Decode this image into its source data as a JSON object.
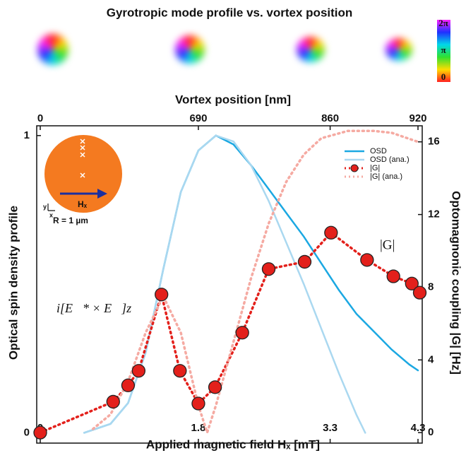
{
  "chart_data": {
    "type": "line",
    "title": "Gyrotropic mode profile vs. vortex position",
    "colorbar": {
      "ticks": [
        "2π",
        "π",
        "0"
      ]
    },
    "x_label": "Applied magnetic field Hₓ [mT]",
    "x2_label": "Vortex position [nm]",
    "y_label": "Optical spin density profile",
    "y2_label": "Optomagnonic coupling |G| [Hz]",
    "xlim": [
      0,
      4.3
    ],
    "xticks": [
      0,
      1.8,
      3.3,
      4.3
    ],
    "x2ticks": [
      {
        "value": 0,
        "label": "0"
      },
      {
        "value": 1.8,
        "label": "690"
      },
      {
        "value": 3.3,
        "label": "860"
      },
      {
        "value": 4.3,
        "label": "920"
      }
    ],
    "ylim": [
      -0.03,
      1.04
    ],
    "yticks": [
      0,
      1
    ],
    "y2lim": [
      -0.5,
      17
    ],
    "y2ticks": [
      0,
      4,
      8,
      12,
      16
    ],
    "legend": "upper right",
    "series": [
      {
        "name": "OSD",
        "color": "#1ba8e2",
        "style": "solid",
        "axis": "y",
        "x": [
          0.5,
          0.8,
          1.0,
          1.2,
          1.4,
          1.6,
          1.8,
          2.0,
          2.2,
          2.4,
          2.6,
          2.8,
          3.0,
          3.2,
          3.4,
          3.6,
          3.8,
          4.0,
          4.2,
          4.3
        ],
        "values": [
          0,
          0.03,
          0.1,
          0.27,
          0.55,
          0.81,
          0.95,
          1.0,
          0.97,
          0.9,
          0.82,
          0.74,
          0.66,
          0.57,
          0.48,
          0.4,
          0.34,
          0.28,
          0.23,
          0.21
        ]
      },
      {
        "name": "OSD (ana.)",
        "color": "#aad8f0",
        "style": "solid",
        "axis": "y",
        "x": [
          0.5,
          0.8,
          1.0,
          1.2,
          1.4,
          1.6,
          1.8,
          2.0,
          2.2,
          2.4,
          2.6,
          2.8,
          3.0,
          3.2,
          3.4,
          3.6,
          3.7
        ],
        "values": [
          0,
          0.03,
          0.1,
          0.27,
          0.55,
          0.81,
          0.95,
          1.0,
          0.98,
          0.9,
          0.78,
          0.64,
          0.5,
          0.35,
          0.2,
          0.06,
          0
        ]
      },
      {
        "name": "|G|",
        "color": "#e3201b",
        "style": "dotted",
        "marker": true,
        "axis": "y2",
        "x": [
          0,
          0.83,
          1.0,
          1.12,
          1.38,
          1.59,
          1.8,
          1.99,
          2.3,
          2.6,
          3.01,
          3.31,
          3.72,
          4.02,
          4.23,
          4.32
        ],
        "values": [
          0,
          1.7,
          2.6,
          3.4,
          7.6,
          3.4,
          1.6,
          2.5,
          5.5,
          9.0,
          9.4,
          11.0,
          9.5,
          8.6,
          8.2,
          7.7
        ]
      },
      {
        "name": "|G| (ana.)",
        "color": "#f5aaa2",
        "style": "dotted",
        "axis": "y2",
        "x": [
          0.6,
          0.8,
          1.0,
          1.2,
          1.4,
          1.6,
          1.8,
          1.9,
          2.0,
          2.2,
          2.4,
          2.6,
          2.8,
          3.0,
          3.2,
          3.5,
          3.8,
          4.0,
          4.3
        ],
        "values": [
          0.2,
          1.0,
          2.8,
          5.5,
          7.5,
          5.5,
          1.5,
          0,
          1.5,
          5,
          8.5,
          11.5,
          13.8,
          15.3,
          16.2,
          16.6,
          16.6,
          16.5,
          16
        ]
      }
    ],
    "annotations": [
      {
        "text": "|G|",
        "color": "#e3201b"
      },
      {
        "text": "i[E⃗* × E⃗]z",
        "color": "#1ba8e2"
      }
    ],
    "inset": {
      "field_label": "Hₓ",
      "radius_label": "R = 1 µm",
      "axis_x": "x",
      "axis_y": "y"
    }
  }
}
